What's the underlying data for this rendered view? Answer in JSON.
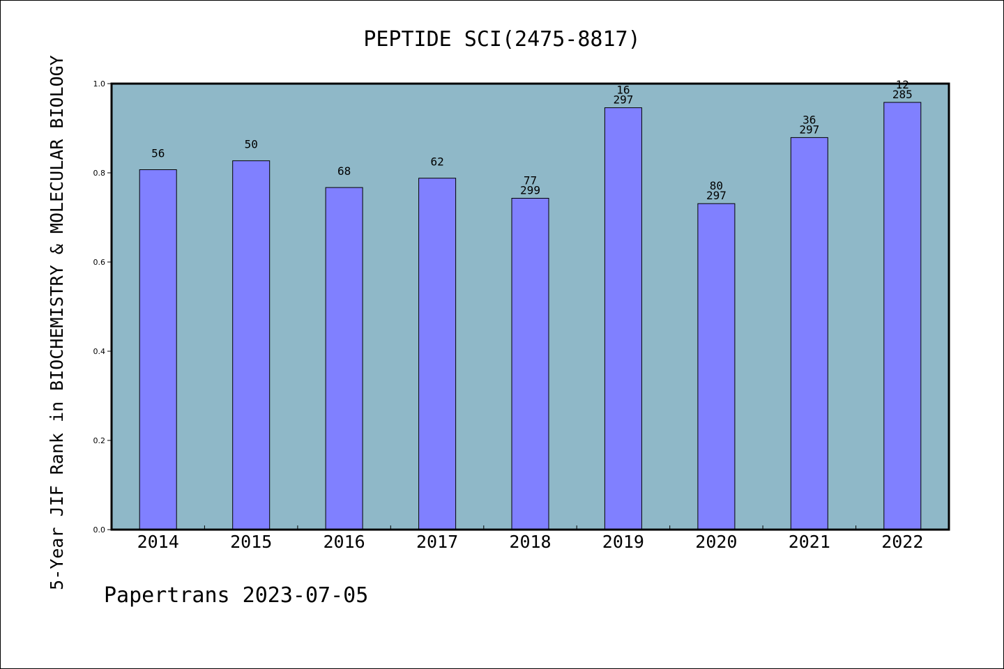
{
  "chart_data": {
    "type": "bar",
    "title": "PEPTIDE SCI(2475-8817)",
    "ylabel": "5-Year JIF Rank in BIOCHEMISTRY & MOLECULAR BIOLOGY",
    "xlabel": "",
    "footer": "Papertrans 2023-07-05",
    "ylim": [
      0,
      1.0
    ],
    "yticks": [
      "0.0",
      "0.2",
      "0.4",
      "0.6",
      "0.8",
      "1.0"
    ],
    "ytick_values": [
      0,
      0.2,
      0.4,
      0.6,
      0.8,
      1.0
    ],
    "categories": [
      "2014",
      "2015",
      "2016",
      "2017",
      "2018",
      "2019",
      "2020",
      "2021",
      "2022"
    ],
    "values": [
      0.807,
      0.827,
      0.767,
      0.788,
      0.743,
      0.946,
      0.731,
      0.879,
      0.958
    ],
    "labels": [
      [
        "56"
      ],
      [
        "50"
      ],
      [
        "68"
      ],
      [
        "62"
      ],
      [
        "77",
        "299"
      ],
      [
        "16",
        "297"
      ],
      [
        "80",
        "297"
      ],
      [
        "36",
        "297"
      ],
      [
        "12",
        "285"
      ]
    ],
    "colors": {
      "plot_background": "#8fb8c8",
      "bar_fill": "#8080ff",
      "bar_stroke": "#000000"
    },
    "grid": false,
    "legend": "none"
  }
}
